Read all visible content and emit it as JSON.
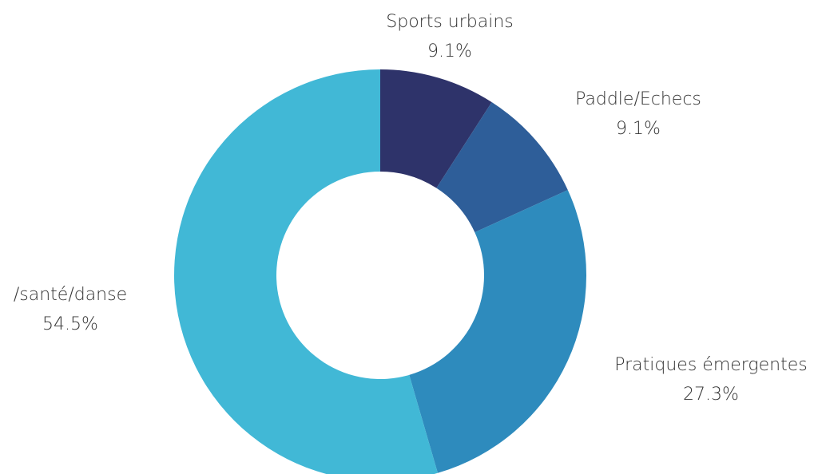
{
  "chart_data": {
    "type": "donut",
    "categories": [
      "Sports urbains",
      "Paddle/Echecs",
      "Pratiques émergentes",
      "/santé/danse"
    ],
    "values": [
      9.1,
      9.1,
      27.3,
      54.5
    ],
    "value_labels": [
      "9.1%",
      "9.1%",
      "27.3%",
      "54.5%"
    ],
    "colors": [
      "#2e336a",
      "#2e5e99",
      "#2e8bbd",
      "#41b8d6"
    ]
  }
}
